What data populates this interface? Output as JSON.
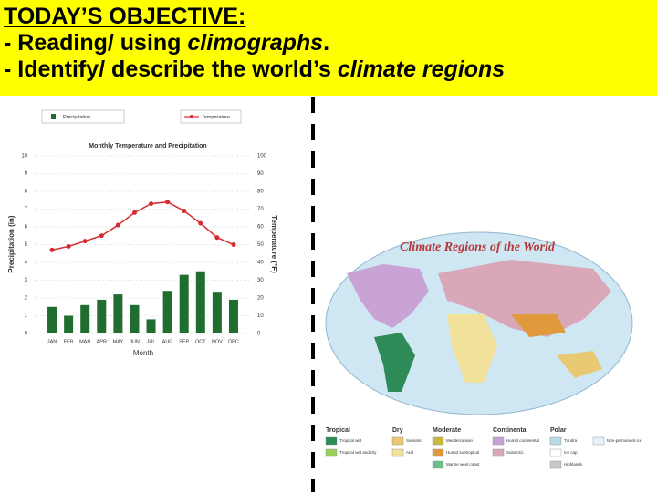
{
  "header": {
    "title": "TODAY’S OBJECTIVE:",
    "lines": [
      [
        "- Reading/ using ",
        "climographs",
        "."
      ],
      [
        "- Identify/ describe the world’s ",
        "climate regions"
      ]
    ]
  },
  "chart_data": {
    "type": "bar-line",
    "title": "Monthly Temperature and Precipitation",
    "x_label": "Month",
    "y_label": "Precipitation (in)",
    "y2_label": "Temperature (°F)",
    "categories": [
      "JAN",
      "FEB",
      "MAR",
      "APR",
      "MAY",
      "JUN",
      "JUL",
      "AUG",
      "SEP",
      "OCT",
      "NOV",
      "DEC"
    ],
    "series": [
      {
        "name": "Precipitation",
        "color": "#1f6e30",
        "kind": "bar",
        "values": [
          1.5,
          1.0,
          1.6,
          1.9,
          2.2,
          1.6,
          0.8,
          2.4,
          3.3,
          3.5,
          2.3,
          1.9
        ]
      },
      {
        "name": "Temperature",
        "color": "#d62a2f",
        "kind": "line",
        "axis": "y2",
        "values": [
          47,
          49,
          52,
          55,
          61,
          68,
          73,
          74,
          69,
          62,
          54,
          50
        ]
      }
    ],
    "ylim": [
      0,
      10
    ],
    "yticks": [
      0,
      1,
      2,
      3,
      4,
      5,
      6,
      7,
      8,
      9,
      10
    ],
    "y2lim": [
      0,
      100
    ],
    "y2ticks": [
      0,
      10,
      20,
      30,
      40,
      50,
      60,
      70,
      80,
      90,
      100
    ],
    "grid": true
  },
  "map": {
    "title": "Climate Regions of the World",
    "legend": [
      {
        "title": "Tropical",
        "items": [
          {
            "label": "Tropical wet",
            "color": "#2e8b57"
          },
          {
            "label": "Tropical wet and dry",
            "color": "#9acd5a"
          }
        ]
      },
      {
        "title": "Dry",
        "items": [
          {
            "label": "Semiarid",
            "color": "#e8c870"
          },
          {
            "label": "Arid",
            "color": "#f2e19a"
          }
        ]
      },
      {
        "title": "Moderate",
        "items": [
          {
            "label": "Mediterranean",
            "color": "#c9b93a"
          },
          {
            "label": "Humid subtropical",
            "color": "#e09a3c"
          },
          {
            "label": "Marine west coast",
            "color": "#6abf8a"
          }
        ]
      },
      {
        "title": "Continental",
        "items": [
          {
            "label": "Humid continental",
            "color": "#c9a2d6"
          },
          {
            "label": "Subarctic",
            "color": "#d9a8b8"
          }
        ]
      },
      {
        "title": "Polar",
        "items": [
          {
            "label": "Tundra",
            "color": "#b8dbe8"
          },
          {
            "label": "Ice cap",
            "color": "#ffffff"
          },
          {
            "label": "Highlands",
            "color": "#c8c8c8"
          }
        ]
      }
    ],
    "extra": {
      "label": "Non-permanent ice",
      "color": "#e6f2f8"
    }
  }
}
